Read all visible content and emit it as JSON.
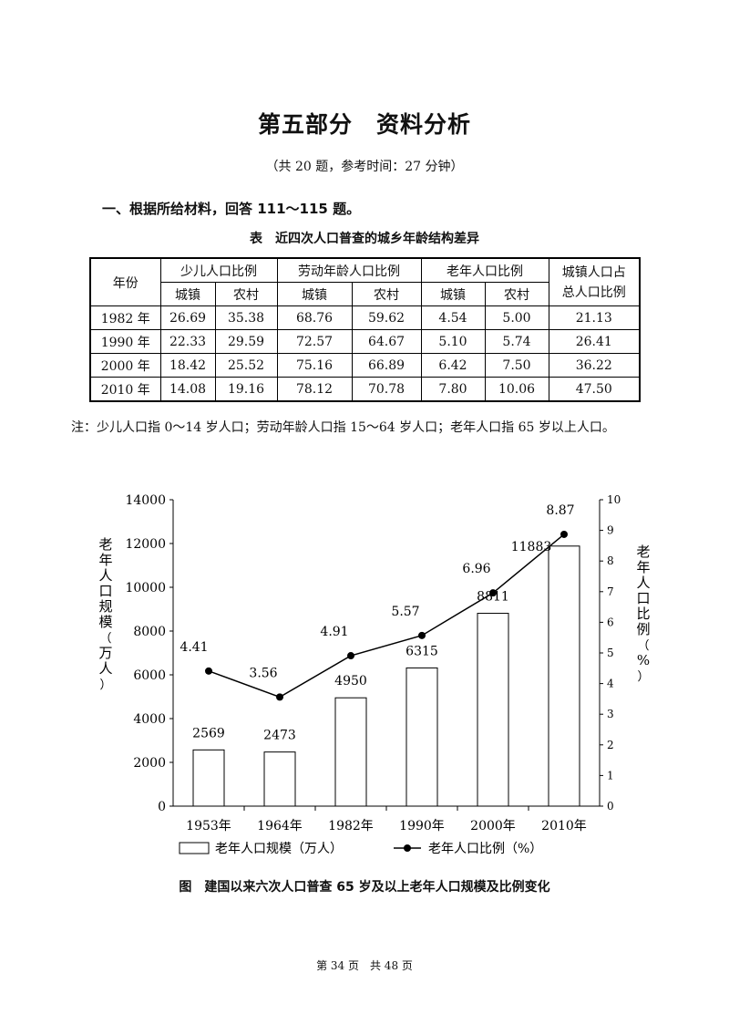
{
  "section_title": "第五部分　资料分析",
  "subtitle": "（共 20 题，参考时间：27 分钟）",
  "question": "一、根据所给材料，回答 111～115 题。",
  "table": {
    "title": "表　近四次人口普查的城乡年龄结构差异",
    "headers": {
      "year": "年份",
      "child": "少儿人口比例",
      "working": "劳动年龄人口比例",
      "elderly": "老年人口比例",
      "urban_share_line1": "城镇人口占",
      "urban_share_line2": "总人口比例",
      "urban": "城镇",
      "rural": "农村"
    },
    "rows": [
      [
        "1982 年",
        "26.69",
        "35.38",
        "68.76",
        "59.62",
        "4.54",
        "5.00",
        "21.13"
      ],
      [
        "1990 年",
        "22.33",
        "29.59",
        "72.57",
        "64.67",
        "5.10",
        "5.74",
        "26.41"
      ],
      [
        "2000 年",
        "18.42",
        "25.52",
        "75.16",
        "66.89",
        "6.42",
        "7.50",
        "36.22"
      ],
      [
        "2010 年",
        "14.08",
        "19.16",
        "78.12",
        "70.78",
        "7.80",
        "10.06",
        "47.50"
      ]
    ]
  },
  "note": "注：少儿人口指 0～14 岁人口；劳动年龄人口指 15～64 岁人口；老年人口指 65 岁以上人口。",
  "chart_data": {
    "type": "bar",
    "categories": [
      "1953年",
      "1964年",
      "1982年",
      "1990年",
      "2000年",
      "2010年"
    ],
    "series": [
      {
        "name": "老年人口规模（万人）",
        "type": "bar",
        "axis": "left",
        "values": [
          2569,
          2473,
          4950,
          6315,
          8811,
          11883
        ]
      },
      {
        "name": "老年人口比例（%）",
        "type": "line",
        "axis": "right",
        "values": [
          4.41,
          3.56,
          4.91,
          5.57,
          6.96,
          8.87
        ]
      }
    ],
    "ylabel": "老年人口规模（万人）",
    "y2label": "老年人口比例（%）",
    "ylim": [
      0,
      14000
    ],
    "y2lim": [
      0,
      10
    ],
    "yticks": [
      0,
      2000,
      4000,
      6000,
      8000,
      10000,
      12000,
      14000
    ],
    "y2ticks": [
      0,
      1,
      2,
      3,
      4,
      5,
      6,
      7,
      8,
      9,
      10
    ],
    "bar_labels": [
      "2569",
      "2473",
      "4950",
      "6315",
      "8811",
      "11883"
    ],
    "line_labels": [
      "4.41",
      "3.56",
      "4.91",
      "5.57",
      "6.96",
      "8.87"
    ],
    "legend_position": "bottom",
    "grid": false
  },
  "figure_caption": "图　建国以来六次人口普查 65 岁及以上老年人口规模及比例变化",
  "footer": "第 34 页　共 48 页"
}
